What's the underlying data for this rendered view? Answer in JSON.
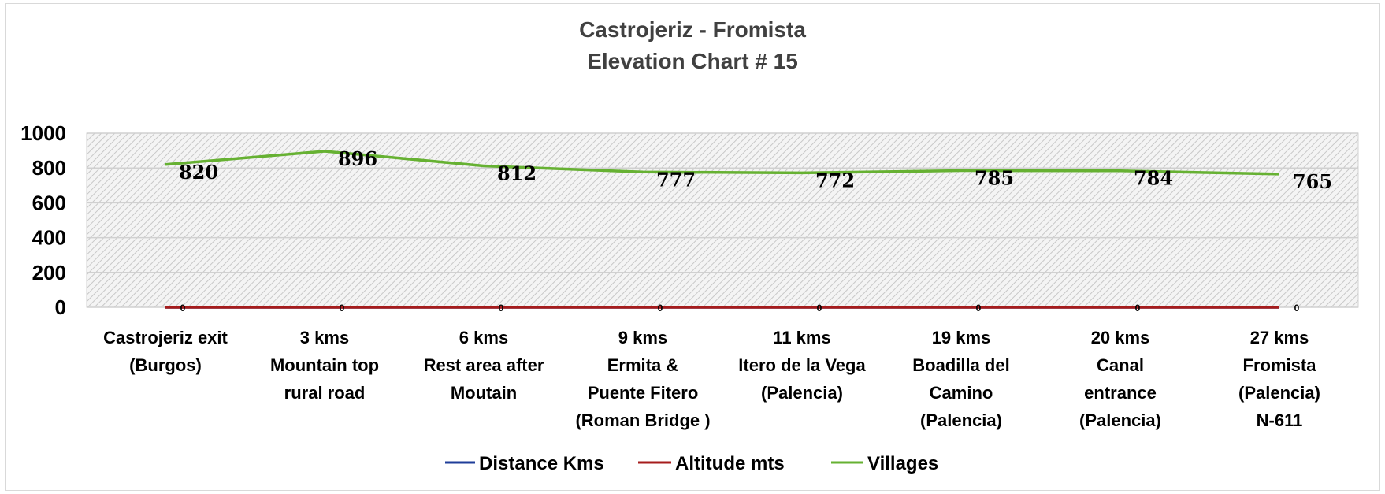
{
  "chart_data": {
    "type": "line",
    "title": "Castrojeriz - Fromista",
    "subtitle": "Elevation Chart # 15",
    "xlabel": "",
    "ylabel": "",
    "ylim": [
      0,
      1000
    ],
    "yticks": [
      "0",
      "200",
      "400",
      "600",
      "800",
      "1000"
    ],
    "grid": true,
    "legend_position": "bottom",
    "categories": [
      [
        "Castrojeriz exit",
        "(Burgos)"
      ],
      [
        "3 kms",
        "Mountain top",
        "rural road"
      ],
      [
        "6 kms",
        "Rest area after",
        "Moutain"
      ],
      [
        "9  kms",
        "Ermita  &",
        "Puente Fitero",
        "(Roman Bridge )"
      ],
      [
        "11 kms",
        "Itero de la Vega",
        "(Palencia)"
      ],
      [
        "19 kms",
        "Boadilla del",
        "Camino",
        "(Palencia)"
      ],
      [
        "20 kms",
        "Canal",
        "entrance",
        "(Palencia)"
      ],
      [
        "27 kms",
        "Fromista",
        "(Palencia)",
        "N-611"
      ]
    ],
    "series": [
      {
        "name": "Distance Kms",
        "color": "#1f3e99",
        "values": [
          0,
          0,
          0,
          0,
          0,
          0,
          0,
          0
        ]
      },
      {
        "name": "Altitude  mts",
        "color": "#a61c1c",
        "values": [
          0,
          0,
          0,
          0,
          0,
          0,
          0,
          0
        ]
      },
      {
        "name": "Villages",
        "color": "#66b132",
        "values": [
          820,
          896,
          812,
          777,
          772,
          785,
          784,
          765
        ]
      }
    ],
    "data_labels": [
      "820",
      "896",
      "812",
      "777",
      "772",
      "785",
      "784",
      "765"
    ],
    "zero_labels": [
      "0",
      "0",
      "0",
      "0",
      "0",
      "0",
      "0",
      "0"
    ]
  }
}
